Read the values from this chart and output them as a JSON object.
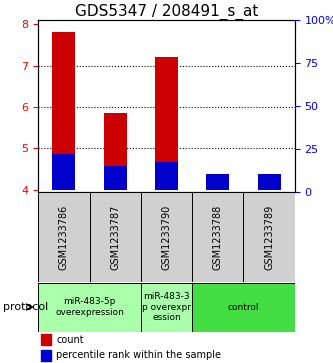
{
  "title": "GDS5347 / 208491_s_at",
  "samples": [
    "GSM1233786",
    "GSM1233787",
    "GSM1233790",
    "GSM1233788",
    "GSM1233789"
  ],
  "bar_tops": [
    7.8,
    5.85,
    7.2,
    4.3,
    4.3
  ],
  "blue_tops": [
    4.87,
    4.57,
    4.67,
    4.38,
    4.38
  ],
  "bar_bottom": 4.0,
  "ylim_left": [
    3.95,
    8.1
  ],
  "ylim_right": [
    0,
    100
  ],
  "yticks_left": [
    4,
    5,
    6,
    7,
    8
  ],
  "yticks_right": [
    0,
    25,
    50,
    75,
    100
  ],
  "ytick_labels_right": [
    "0",
    "25",
    "50",
    "75",
    "100%"
  ],
  "bar_color": "#cc0000",
  "blue_color": "#0000cc",
  "bar_width": 0.45,
  "background_color": "#ffffff",
  "title_fontsize": 11,
  "tick_fontsize": 8,
  "sample_label_fontsize": 7,
  "group_label_fontsize": 6.5,
  "legend_fontsize": 7,
  "group_ranges": [
    [
      -0.5,
      1.5,
      "miR-483-5p\noverexpression",
      "#aaffaa"
    ],
    [
      1.5,
      2.5,
      "miR-483-3\np overexpr\nession",
      "#aaffaa"
    ],
    [
      2.5,
      4.5,
      "control",
      "#44dd44"
    ]
  ],
  "protocol_label": "protocol",
  "legend_count_label": "count",
  "legend_pct_label": "percentile rank within the sample"
}
